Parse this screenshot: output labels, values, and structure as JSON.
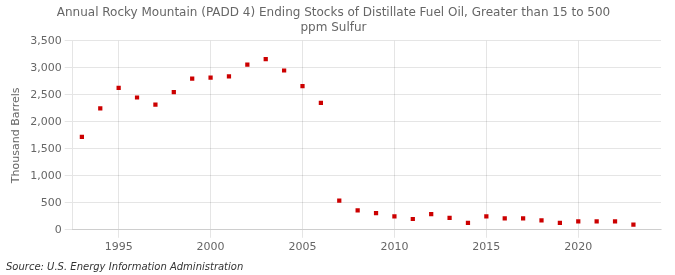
{
  "chart_data": {
    "type": "scatter",
    "title": "Annual Rocky Mountain (PADD 4) Ending Stocks of Distillate Fuel Oil, Greater than 15 to 500\nppm Sulfur",
    "ylabel": "Thousand Barrels",
    "annotations": [
      "Source: U.S. Energy Information Administration"
    ],
    "x": [
      1993,
      1994,
      1995,
      1996,
      1997,
      1998,
      1999,
      2000,
      2001,
      2002,
      2003,
      2004,
      2005,
      2006,
      2007,
      2008,
      2009,
      2010,
      2011,
      2012,
      2013,
      2014,
      2015,
      2016,
      2017,
      2018,
      2019,
      2020,
      2021,
      2022,
      2023
    ],
    "values": [
      1720,
      2250,
      2630,
      2450,
      2320,
      2550,
      2800,
      2820,
      2840,
      3060,
      3160,
      2950,
      2660,
      2350,
      540,
      360,
      310,
      250,
      200,
      290,
      220,
      130,
      250,
      210,
      210,
      175,
      130,
      155,
      155,
      155,
      95
    ],
    "color": "#cc0000",
    "marker": "square",
    "xlim": [
      1992.5,
      2024.5
    ],
    "xticks": [
      1995,
      2000,
      2005,
      2010,
      2015,
      2020
    ],
    "ylim": [
      0,
      3500
    ],
    "yticks": [
      0,
      500,
      {
        "value": 1000,
        "label": "1,000"
      },
      {
        "value": 1500,
        "label": "1,500"
      },
      {
        "value": 2000,
        "label": "2,000"
      },
      {
        "value": 2500,
        "label": "2,500"
      },
      {
        "value": 3000,
        "label": "3,000"
      },
      {
        "value": 3500,
        "label": "3,500"
      }
    ],
    "grid": true
  }
}
